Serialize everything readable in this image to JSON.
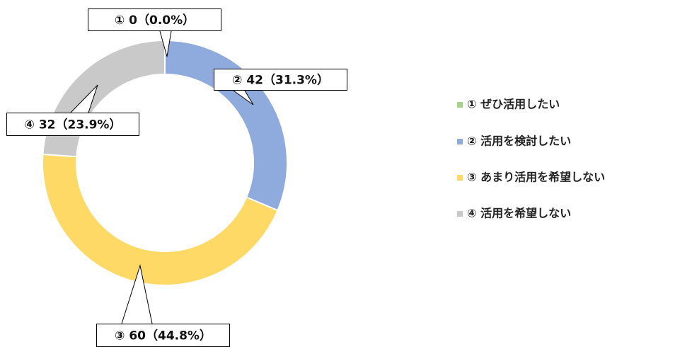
{
  "chart_data": {
    "type": "donut",
    "categories": [
      "① ぜひ活用したい",
      "② 活用を検討したい",
      "③ あまり活用を希望しない",
      "④ 活用を希望しない"
    ],
    "values": [
      0,
      42,
      60,
      32
    ],
    "value_labels": [
      "① 0（0.0%）",
      "② 42（31.3%）",
      "③ 60（44.8%）",
      "④ 32（23.9%）"
    ],
    "colors": [
      "#a9d18e",
      "#8faadc",
      "#ffd966",
      "#c9c9c9"
    ],
    "legend": "right"
  }
}
